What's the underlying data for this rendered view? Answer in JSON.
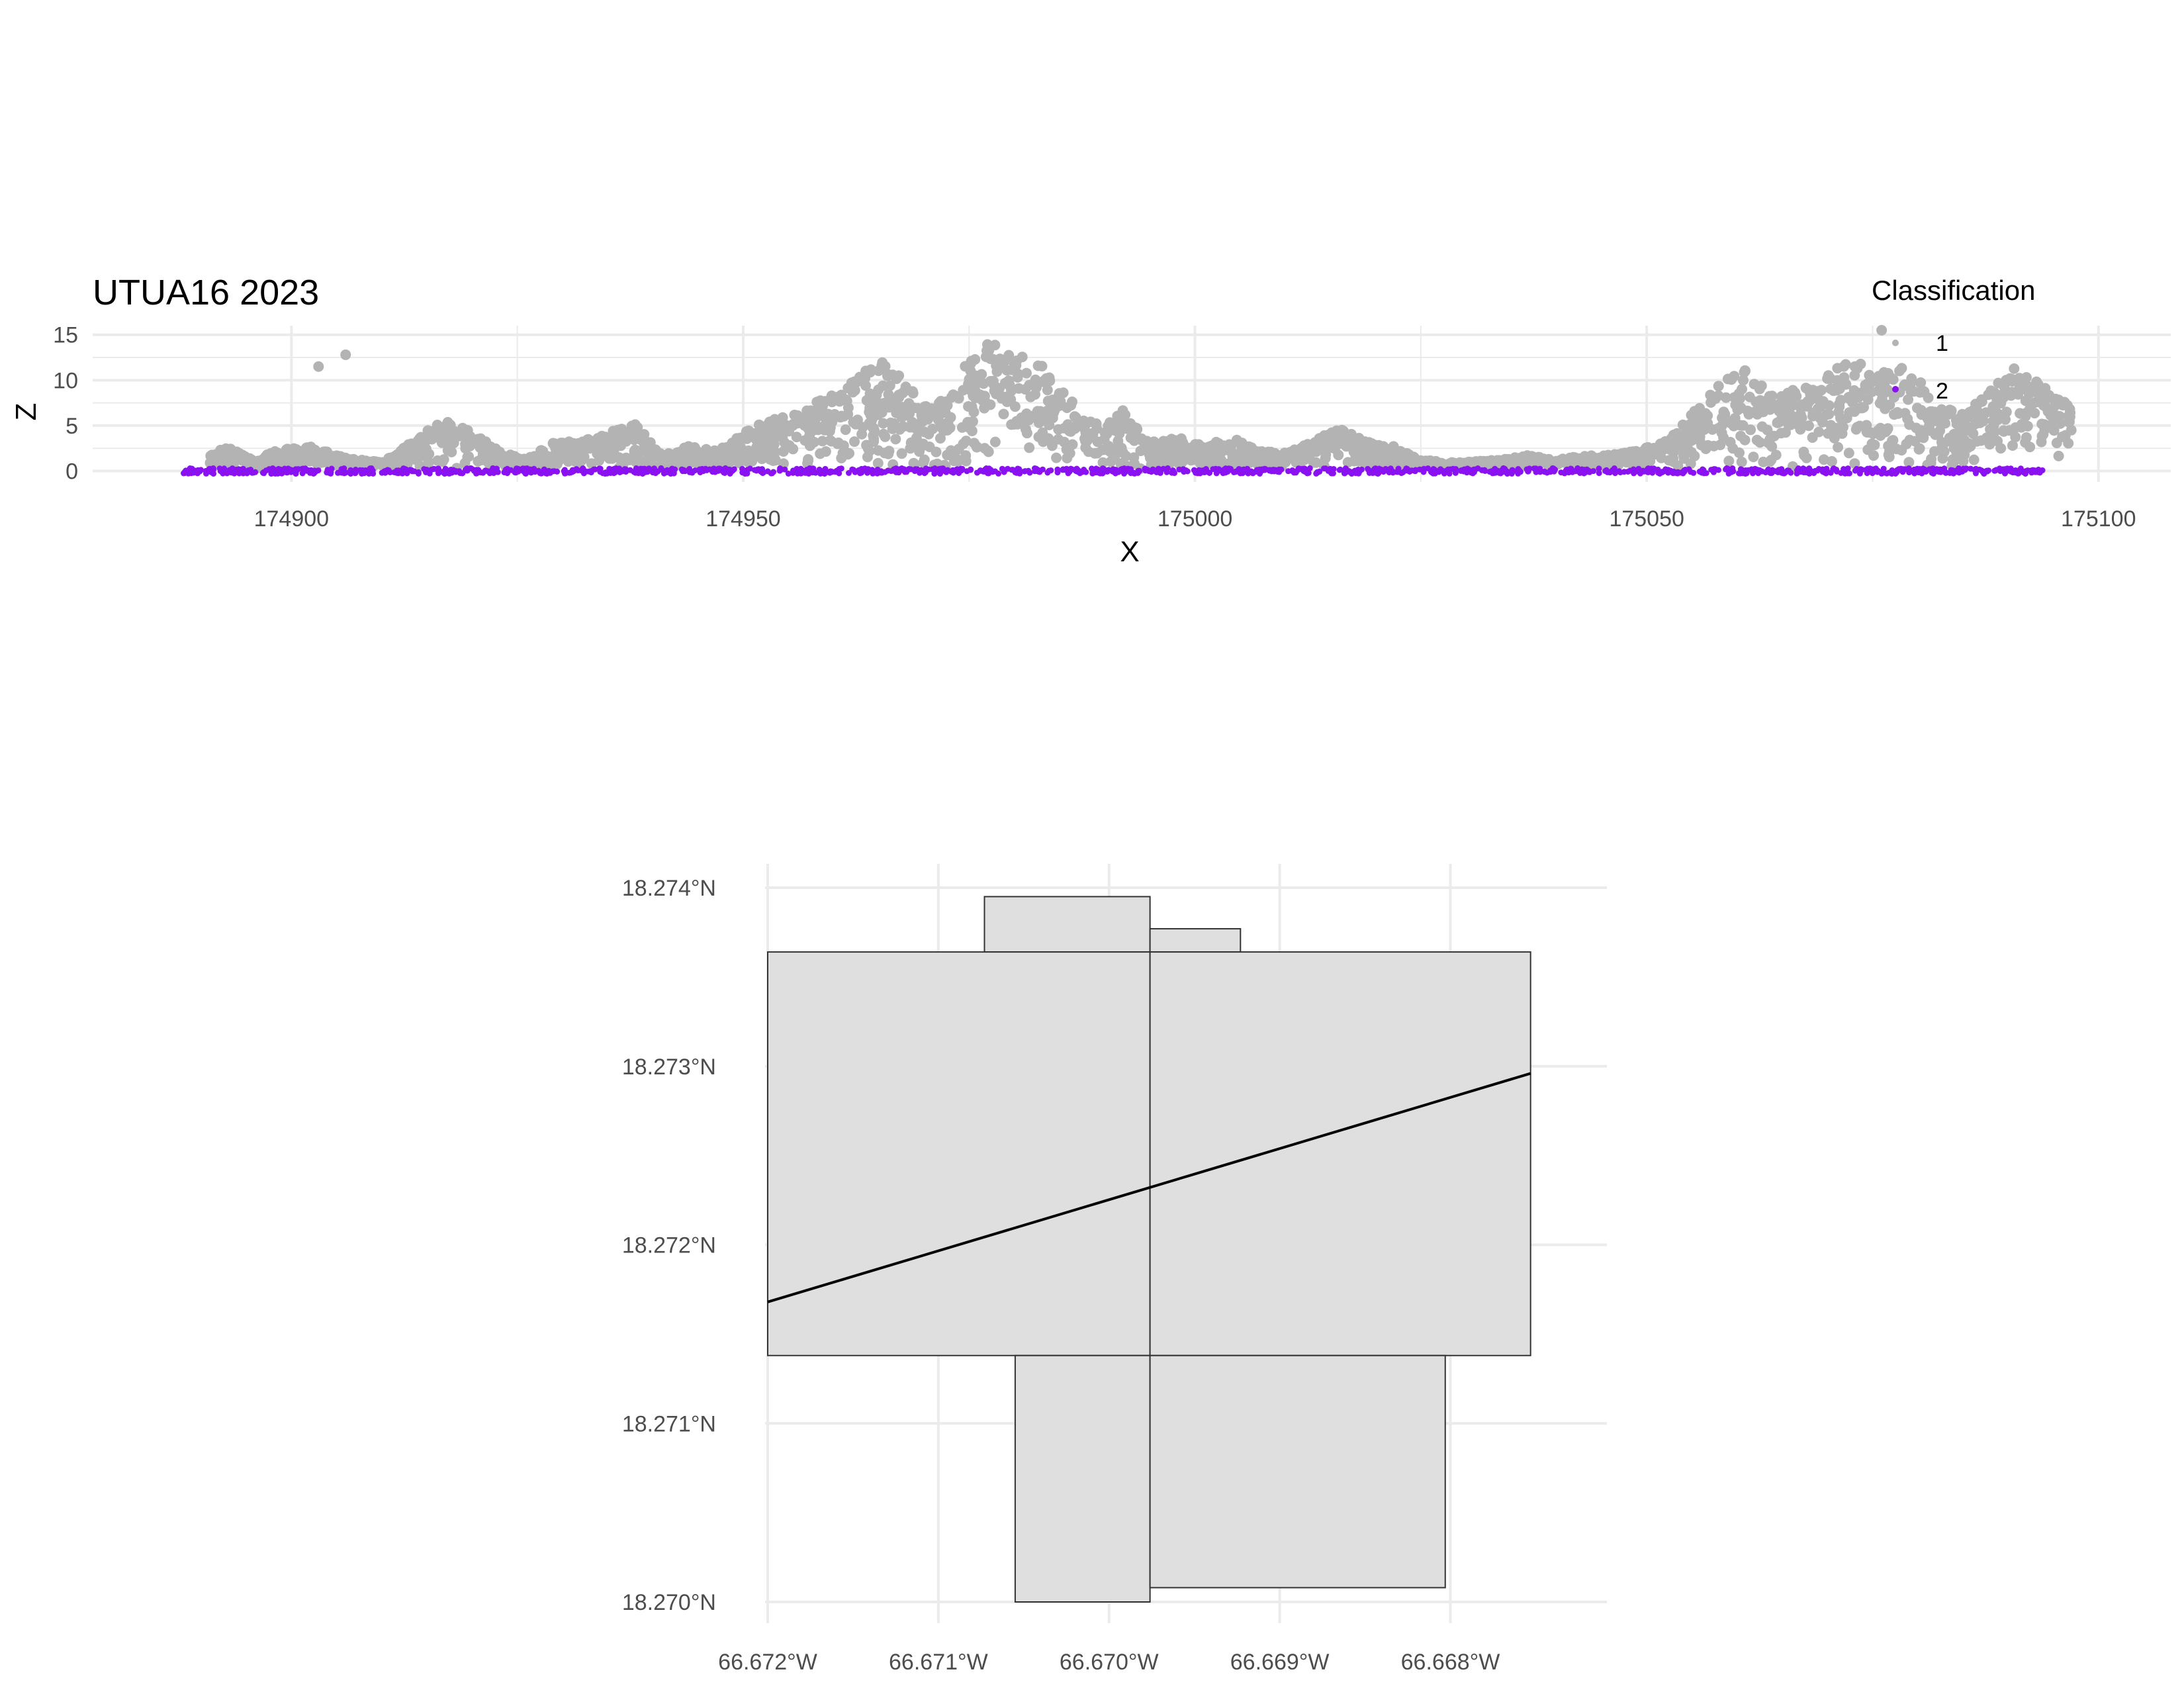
{
  "chart_data": [
    {
      "type": "scatter",
      "title": "UTUA16 2023",
      "xlabel": "X",
      "ylabel": "Z",
      "xlim": [
        174878,
        175108
      ],
      "ylim": [
        -1.2,
        16
      ],
      "x_ticks": [
        174900,
        174950,
        175000,
        175050,
        175100
      ],
      "y_ticks": [
        0,
        5,
        10,
        15
      ],
      "grid": true,
      "legend": {
        "title": "Classification",
        "position": "right",
        "entries": [
          {
            "label": "1",
            "color": "#b3b3b3"
          },
          {
            "label": "2",
            "color": "#8a12f0"
          }
        ]
      },
      "series": [
        {
          "name": "1",
          "color": "#b3b3b3",
          "profile": [
            [
              174891,
              1.5
            ],
            [
              174893,
              2.5
            ],
            [
              174896,
              0.8
            ],
            [
              174898,
              2.0
            ],
            [
              174902,
              2.5
            ],
            [
              174906,
              1.2
            ],
            [
              174910,
              0.7
            ],
            [
              174914,
              3.5
            ],
            [
              174917,
              5.5
            ],
            [
              174920,
              4.0
            ],
            [
              174923,
              2.0
            ],
            [
              174926,
              1.0
            ],
            [
              174929,
              3.0
            ],
            [
              174932,
              3.0
            ],
            [
              174935,
              4.0
            ],
            [
              174938,
              5.0
            ],
            [
              174941,
              1.5
            ],
            [
              174944,
              2.5
            ],
            [
              174947,
              2.0
            ],
            [
              174950,
              4.0
            ],
            [
              174953,
              5.5
            ],
            [
              174956,
              6.0
            ],
            [
              174959,
              8.0
            ],
            [
              174962,
              9.5
            ],
            [
              174965,
              12.0
            ],
            [
              174968,
              10.0
            ],
            [
              174971,
              7.0
            ],
            [
              174974,
              11.0
            ],
            [
              174977,
              14.0
            ],
            [
              174980,
              13.0
            ],
            [
              174983,
              11.5
            ],
            [
              174986,
              8.0
            ],
            [
              174989,
              5.0
            ],
            [
              174992,
              6.5
            ],
            [
              174995,
              3.0
            ],
            [
              174998,
              3.5
            ],
            [
              175001,
              2.5
            ],
            [
              175004,
              3.5
            ],
            [
              175007,
              2.0
            ],
            [
              175010,
              1.8
            ],
            [
              175013,
              3.0
            ],
            [
              175016,
              4.5
            ],
            [
              175019,
              3.0
            ],
            [
              175022,
              2.5
            ],
            [
              175025,
              1.0
            ],
            [
              175028,
              0.7
            ],
            [
              175031,
              0.8
            ],
            [
              175034,
              1.0
            ],
            [
              175037,
              1.5
            ],
            [
              175040,
              1.0
            ],
            [
              175043,
              1.5
            ],
            [
              175046,
              1.5
            ],
            [
              175049,
              2.0
            ],
            [
              175052,
              3.0
            ],
            [
              175055,
              6.0
            ],
            [
              175058,
              9.5
            ],
            [
              175061,
              11.0
            ],
            [
              175064,
              8.0
            ],
            [
              175067,
              9.0
            ],
            [
              175070,
              11.0
            ],
            [
              175073,
              12.0
            ],
            [
              175076,
              10.5
            ],
            [
              175079,
              12.0
            ],
            [
              175082,
              7.0
            ],
            [
              175085,
              6.0
            ],
            [
              175088,
              9.0
            ],
            [
              175091,
              11.5
            ],
            [
              175094,
              9.0
            ],
            [
              175097,
              7.0
            ]
          ],
          "isolated_points": [
            [
              174903,
              11.5
            ],
            [
              174906,
              12.8
            ],
            [
              175076,
              15.5
            ],
            [
              175096,
              7.5
            ]
          ]
        },
        {
          "name": "2",
          "color": "#8a12f0",
          "x_range": [
            174888,
            175094
          ],
          "z_range": [
            -1.0,
            0.3
          ]
        }
      ]
    },
    {
      "type": "map",
      "x_ticks": [
        "66.672°W",
        "66.671°W",
        "66.670°W",
        "66.669°W",
        "66.668°W"
      ],
      "x_tick_values": [
        -66.672,
        -66.671,
        -66.67,
        -66.669,
        -66.668
      ],
      "y_ticks": [
        "18.270°N",
        "18.271°N",
        "18.272°N",
        "18.273°N",
        "18.274°N"
      ],
      "y_tick_values": [
        18.27,
        18.271,
        18.272,
        18.273,
        18.274
      ],
      "xlim": [
        -66.672,
        -66.6673
      ],
      "ylim": [
        18.27,
        18.274
      ],
      "grid": true,
      "fill_color": "#dfdfdf",
      "polygons": [
        {
          "name": "top-left-tile",
          "lon": [
            -66.67073,
            -66.66976
          ],
          "lat": [
            18.27364,
            18.27395
          ]
        },
        {
          "name": "top-right-tile",
          "lon": [
            -66.66976,
            -66.66923
          ],
          "lat": [
            18.27364,
            18.27377
          ]
        },
        {
          "name": "center-left-tile",
          "lon": [
            -66.672,
            -66.66976
          ],
          "lat": [
            18.27138,
            18.27364
          ]
        },
        {
          "name": "center-right-tile",
          "lon": [
            -66.66976,
            -66.66753
          ],
          "lat": [
            18.27138,
            18.27364
          ]
        },
        {
          "name": "bottom-left-tile",
          "lon": [
            -66.67055,
            -66.66976
          ],
          "lat": [
            18.27,
            18.27138
          ]
        },
        {
          "name": "bottom-right-tile",
          "lon": [
            -66.66976,
            -66.66803
          ],
          "lat": [
            18.27008,
            18.27138
          ]
        }
      ],
      "transect": {
        "lon": [
          -66.672,
          -66.66753
        ],
        "lat": [
          18.27168,
          18.27296
        ]
      }
    }
  ]
}
